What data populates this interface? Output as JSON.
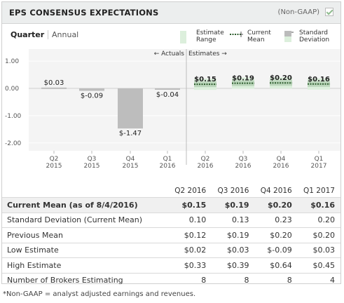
{
  "header": {
    "title": "EPS CONSENSUS EXPECTATIONS",
    "non_gaap": "(Non-GAAP)"
  },
  "period_tabs": {
    "quarter": "Quarter",
    "annual": "Annual"
  },
  "legend": {
    "estimate_range": [
      "Estimate",
      "Range"
    ],
    "current_mean": [
      "Current",
      "Mean"
    ],
    "std_dev": [
      "Standard",
      "Deviation"
    ]
  },
  "chart_data": {
    "type": "bar",
    "ylim": [
      -2.0,
      1.0
    ],
    "yticks": [
      "1.00",
      "0.00",
      "-1.00",
      "-2.00"
    ],
    "ytick_values": [
      1.0,
      0.0,
      -1.0,
      -2.0
    ],
    "actuals_label": "← Actuals",
    "estimates_label": "Estimates →",
    "actuals": [
      {
        "q": "Q2",
        "y": "2015",
        "value": 0.03,
        "label": "$0.03"
      },
      {
        "q": "Q3",
        "y": "2015",
        "value": -0.09,
        "label": "$-0.09"
      },
      {
        "q": "Q4",
        "y": "2015",
        "value": -1.47,
        "label": "$-1.47"
      },
      {
        "q": "Q1",
        "y": "2016",
        "value": -0.04,
        "label": "$-0.04"
      }
    ],
    "estimates": [
      {
        "q": "Q2",
        "y": "2016",
        "mean": 0.15,
        "low": 0.02,
        "high": 0.33,
        "std": 0.1,
        "label": "$0.15"
      },
      {
        "q": "Q3",
        "y": "2016",
        "mean": 0.19,
        "low": 0.03,
        "high": 0.39,
        "std": 0.13,
        "label": "$0.19"
      },
      {
        "q": "Q4",
        "y": "2016",
        "mean": 0.2,
        "low": -0.09,
        "high": 0.64,
        "std": 0.23,
        "label": "$0.20"
      },
      {
        "q": "Q1",
        "y": "2017",
        "mean": 0.16,
        "low": 0.03,
        "high": 0.45,
        "std": 0.2,
        "label": "$0.16"
      }
    ],
    "colors": {
      "actual": "#bdbdbd",
      "estimate_range": "#dcefdc",
      "std_dev": "#bcd6bc",
      "mean_line": "#2e5e2e"
    }
  },
  "table": {
    "columns": [
      "Q2 2016",
      "Q3 2016",
      "Q4 2016",
      "Q1 2017"
    ],
    "rows": [
      {
        "label": "Current Mean (as of 8/4/2016)",
        "values": [
          "$0.15",
          "$0.19",
          "$0.20",
          "$0.16"
        ],
        "bold": true
      },
      {
        "label": "Standard Deviation (Current Mean)",
        "values": [
          "0.10",
          "0.13",
          "0.23",
          "0.20"
        ]
      },
      {
        "label": "Previous Mean",
        "values": [
          "$0.12",
          "$0.19",
          "$0.20",
          "$0.20"
        ]
      },
      {
        "label": "Low Estimate",
        "values": [
          "$0.02",
          "$0.03",
          "$-0.09",
          "$0.03"
        ]
      },
      {
        "label": "High Estimate",
        "values": [
          "$0.33",
          "$0.39",
          "$0.64",
          "$0.45"
        ]
      },
      {
        "label": "Number of Brokers Estimating",
        "values": [
          "8",
          "8",
          "8",
          "4"
        ]
      }
    ]
  },
  "footnote": "*Non-GAAP = analyst adjusted earnings and revenues."
}
